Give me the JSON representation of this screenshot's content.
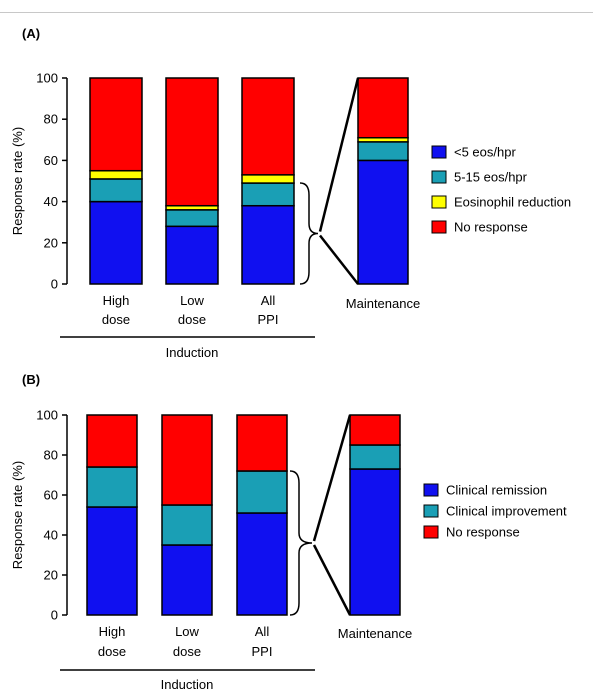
{
  "chart_data": [
    {
      "type": "bar",
      "stacked": true,
      "panel_label": "(A)",
      "ylabel": "Response rate (%)",
      "ylim": [
        0,
        100
      ],
      "yticks": [
        0,
        20,
        40,
        60,
        80,
        100
      ],
      "categories": [
        [
          "High",
          "dose"
        ],
        [
          "Low",
          "dose"
        ],
        [
          "All",
          "PPI"
        ]
      ],
      "group_label": "Induction",
      "series": [
        {
          "name": "<5 eos/hpr",
          "color": "#1010f0",
          "values": [
            40,
            28,
            38
          ]
        },
        {
          "name": "5-15 eos/hpr",
          "color": "#1a9fb5",
          "values": [
            11,
            8,
            11
          ]
        },
        {
          "name": "Eosinophil reduction",
          "color": "#ffff00",
          "values": [
            4,
            2,
            4
          ]
        },
        {
          "name": "No response",
          "color": "#ff0000",
          "values": [
            45,
            62,
            47
          ]
        }
      ],
      "maintenance": {
        "label": "Maintenance",
        "values": [
          60,
          9,
          2,
          29
        ]
      },
      "legend_position": "right"
    },
    {
      "type": "bar",
      "stacked": true,
      "panel_label": "(B)",
      "ylabel": "Response rate (%)",
      "ylim": [
        0,
        100
      ],
      "yticks": [
        0,
        20,
        40,
        60,
        80,
        100
      ],
      "categories": [
        [
          "High",
          "dose"
        ],
        [
          "Low",
          "dose"
        ],
        [
          "All",
          "PPI"
        ]
      ],
      "group_label": "Induction",
      "series": [
        {
          "name": "Clinical remission",
          "color": "#1010f0",
          "values": [
            54,
            35,
            51
          ]
        },
        {
          "name": "Clinical improvement",
          "color": "#1a9fb5",
          "values": [
            20,
            20,
            21
          ]
        },
        {
          "name": "No response",
          "color": "#ff0000",
          "values": [
            26,
            45,
            28
          ]
        }
      ],
      "maintenance": {
        "label": "Maintenance",
        "values": [
          73,
          12,
          15
        ]
      },
      "legend_position": "right"
    }
  ]
}
